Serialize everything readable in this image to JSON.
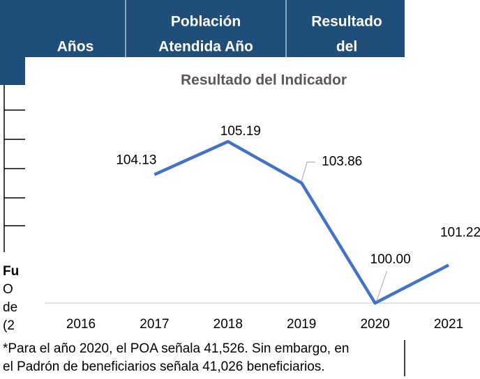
{
  "table": {
    "headers": [
      [
        "Años"
      ],
      [
        "Población",
        "Atendida Año"
      ],
      [
        "Resultado",
        "del"
      ]
    ]
  },
  "partial_text": [
    "Fu",
    "O",
    "de",
    "(2"
  ],
  "footnote": [
    "*Para el año 2020, el POA señala 41,526.  Sin embargo, en",
    "el Padrón de beneficiarios señala 41,026 beneficiarios."
  ],
  "chart_data": {
    "type": "line",
    "title": "Resultado del Indicador",
    "categories": [
      "2016",
      "2017",
      "2018",
      "2019",
      "2020",
      "2021"
    ],
    "series": [
      {
        "name": "Resultado del Indicador",
        "color": "#4472c4",
        "values": [
          null,
          104.13,
          105.19,
          103.86,
          100,
          101.22
        ],
        "value_labels": [
          null,
          "104.13",
          "105.19",
          "103.86",
          "100.00",
          "101.22"
        ]
      }
    ],
    "ylim": [
      100,
      106
    ]
  }
}
